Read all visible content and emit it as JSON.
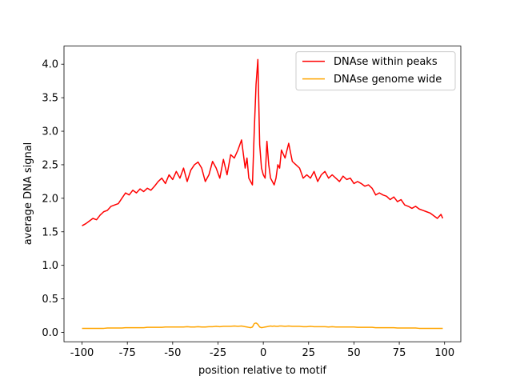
{
  "chart_data": {
    "type": "line",
    "xlabel": "position relative to motif",
    "ylabel": "average DNA signal",
    "x": [
      -100,
      -98,
      -96,
      -94,
      -92,
      -90,
      -88,
      -86,
      -84,
      -82,
      -80,
      -78,
      -76,
      -74,
      -72,
      -70,
      -68,
      -66,
      -64,
      -62,
      -60,
      -58,
      -56,
      -54,
      -52,
      -50,
      -48,
      -46,
      -44,
      -42,
      -40,
      -38,
      -36,
      -34,
      -32,
      -30,
      -28,
      -26,
      -24,
      -22,
      -20,
      -18,
      -16,
      -14,
      -12,
      -10,
      -9,
      -8,
      -7,
      -6,
      -5,
      -4,
      -3,
      -2,
      -1,
      0,
      1,
      2,
      3,
      4,
      5,
      6,
      7,
      8,
      9,
      10,
      12,
      14,
      16,
      18,
      20,
      22,
      24,
      26,
      28,
      30,
      32,
      34,
      36,
      38,
      40,
      42,
      44,
      46,
      48,
      50,
      52,
      54,
      56,
      58,
      60,
      62,
      64,
      66,
      68,
      70,
      72,
      74,
      76,
      78,
      80,
      82,
      84,
      86,
      88,
      90,
      92,
      94,
      96,
      98,
      99
    ],
    "series": [
      {
        "name": "DNAse within peaks",
        "color": "#ff0000",
        "values": [
          1.59,
          1.62,
          1.66,
          1.7,
          1.68,
          1.75,
          1.8,
          1.82,
          1.88,
          1.9,
          1.92,
          2.0,
          2.08,
          2.05,
          2.12,
          2.08,
          2.14,
          2.1,
          2.15,
          2.12,
          2.18,
          2.25,
          2.3,
          2.22,
          2.35,
          2.28,
          2.4,
          2.3,
          2.45,
          2.25,
          2.42,
          2.5,
          2.54,
          2.45,
          2.25,
          2.35,
          2.55,
          2.45,
          2.3,
          2.58,
          2.35,
          2.65,
          2.6,
          2.72,
          2.87,
          2.45,
          2.6,
          2.3,
          2.25,
          2.2,
          3.0,
          3.7,
          4.07,
          2.8,
          2.45,
          2.35,
          2.3,
          2.85,
          2.5,
          2.3,
          2.25,
          2.2,
          2.3,
          2.5,
          2.45,
          2.72,
          2.6,
          2.82,
          2.55,
          2.5,
          2.45,
          2.3,
          2.35,
          2.3,
          2.4,
          2.25,
          2.35,
          2.4,
          2.3,
          2.35,
          2.3,
          2.25,
          2.33,
          2.28,
          2.3,
          2.22,
          2.25,
          2.22,
          2.18,
          2.2,
          2.15,
          2.05,
          2.08,
          2.05,
          2.03,
          1.98,
          2.02,
          1.95,
          1.98,
          1.9,
          1.88,
          1.85,
          1.88,
          1.84,
          1.82,
          1.8,
          1.78,
          1.74,
          1.7,
          1.76,
          1.7
        ]
      },
      {
        "name": "DNAse genome wide",
        "color": "#ffa500",
        "values": [
          0.06,
          0.06,
          0.06,
          0.06,
          0.06,
          0.06,
          0.06,
          0.065,
          0.065,
          0.065,
          0.065,
          0.065,
          0.07,
          0.07,
          0.07,
          0.07,
          0.07,
          0.07,
          0.075,
          0.075,
          0.075,
          0.075,
          0.075,
          0.08,
          0.08,
          0.08,
          0.08,
          0.08,
          0.08,
          0.085,
          0.08,
          0.08,
          0.085,
          0.08,
          0.08,
          0.085,
          0.085,
          0.09,
          0.085,
          0.09,
          0.09,
          0.09,
          0.095,
          0.09,
          0.095,
          0.085,
          0.08,
          0.075,
          0.07,
          0.08,
          0.13,
          0.14,
          0.12,
          0.08,
          0.07,
          0.075,
          0.08,
          0.085,
          0.09,
          0.095,
          0.09,
          0.095,
          0.09,
          0.09,
          0.095,
          0.095,
          0.09,
          0.095,
          0.09,
          0.09,
          0.09,
          0.085,
          0.085,
          0.09,
          0.085,
          0.085,
          0.085,
          0.085,
          0.08,
          0.085,
          0.08,
          0.08,
          0.08,
          0.08,
          0.08,
          0.08,
          0.075,
          0.075,
          0.075,
          0.075,
          0.075,
          0.07,
          0.07,
          0.07,
          0.07,
          0.07,
          0.07,
          0.065,
          0.065,
          0.065,
          0.065,
          0.065,
          0.065,
          0.06,
          0.06,
          0.06,
          0.06,
          0.06,
          0.06,
          0.06,
          0.06
        ]
      }
    ],
    "xlim": [
      -109.95,
      108.95
    ],
    "xticks": [
      -100,
      -75,
      -50,
      -25,
      0,
      25,
      50,
      75,
      100
    ],
    "ylim": [
      -0.14,
      4.27
    ],
    "yticks": [
      {
        "value": 0,
        "label": "0.0"
      },
      {
        "value": 0.5,
        "label": "0.5"
      },
      {
        "value": 1,
        "label": "1.0"
      },
      {
        "value": 1.5,
        "label": "1.5"
      },
      {
        "value": 2,
        "label": "2.0"
      },
      {
        "value": 2.5,
        "label": "2.5"
      },
      {
        "value": 3,
        "label": "3.0"
      },
      {
        "value": 3.5,
        "label": "3.5"
      },
      {
        "value": 4,
        "label": "4.0"
      }
    ],
    "grid": false,
    "legend": "upper right"
  }
}
